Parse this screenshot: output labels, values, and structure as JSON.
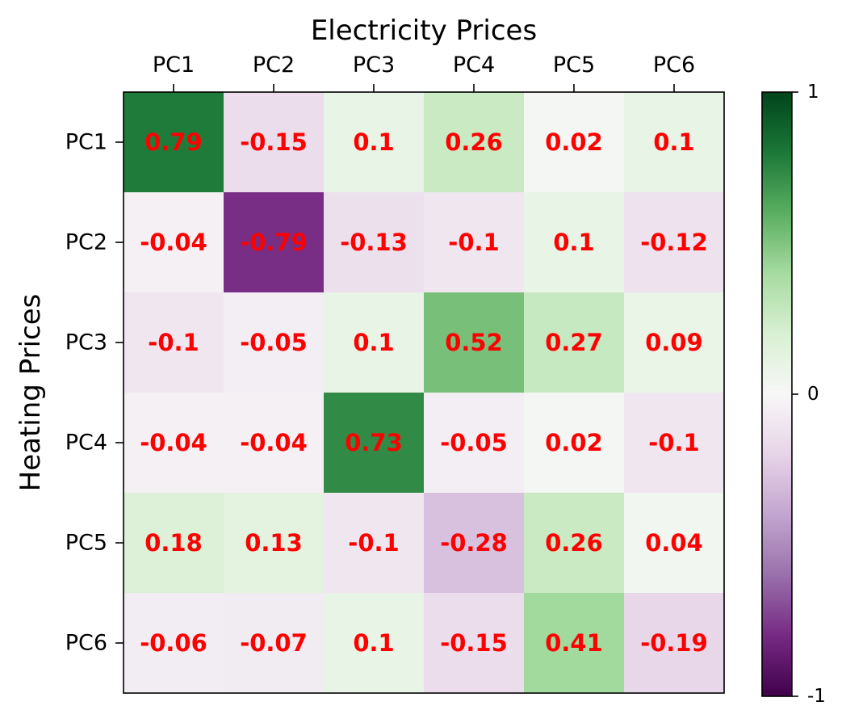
{
  "chart_data": {
    "type": "heatmap",
    "xlabel": "Electricity Prices",
    "ylabel": "Heating Prices",
    "x_categories": [
      "PC1",
      "PC2",
      "PC3",
      "PC4",
      "PC5",
      "PC6"
    ],
    "y_categories": [
      "PC1",
      "PC2",
      "PC3",
      "PC4",
      "PC5",
      "PC6"
    ],
    "values": [
      [
        0.79,
        -0.15,
        0.1,
        0.26,
        0.02,
        0.1
      ],
      [
        -0.04,
        -0.79,
        -0.13,
        -0.1,
        0.1,
        -0.12
      ],
      [
        -0.1,
        -0.05,
        0.1,
        0.52,
        0.27,
        0.09
      ],
      [
        -0.04,
        -0.04,
        0.73,
        -0.05,
        0.02,
        -0.1
      ],
      [
        0.18,
        0.13,
        -0.1,
        -0.28,
        0.26,
        0.04
      ],
      [
        -0.06,
        -0.07,
        0.1,
        -0.15,
        0.41,
        -0.19
      ]
    ],
    "x_axis_position": "top",
    "colormap": "PRGn",
    "color_range": [
      -1,
      1
    ],
    "colorbar": {
      "ticks": [
        1,
        0,
        -1
      ],
      "tick_labels": [
        "1",
        "0",
        "-1"
      ]
    },
    "annotation_color": "#ff0000",
    "grid": false
  }
}
